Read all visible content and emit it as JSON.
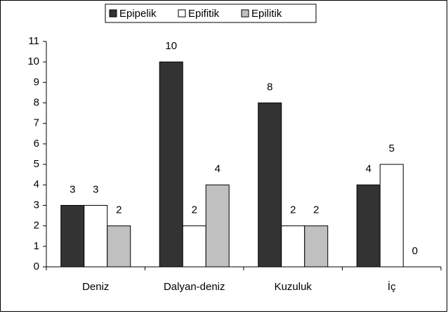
{
  "chart_data": {
    "type": "bar",
    "categories": [
      "Deniz",
      "Dalyan-deniz",
      "Kuzuluk",
      "İç"
    ],
    "series": [
      {
        "name": "Epipelik",
        "color": "#333333",
        "values": [
          3,
          10,
          8,
          4
        ]
      },
      {
        "name": "Epifitik",
        "color": "#ffffff",
        "values": [
          3,
          2,
          2,
          5
        ]
      },
      {
        "name": "Epilitik",
        "color": "#c0c0c0",
        "values": [
          2,
          4,
          2,
          0
        ]
      }
    ],
    "ylim": [
      0,
      11
    ],
    "yticks": [
      0,
      1,
      2,
      3,
      4,
      5,
      6,
      7,
      8,
      9,
      10,
      11
    ],
    "grid": false,
    "legend": "top"
  }
}
